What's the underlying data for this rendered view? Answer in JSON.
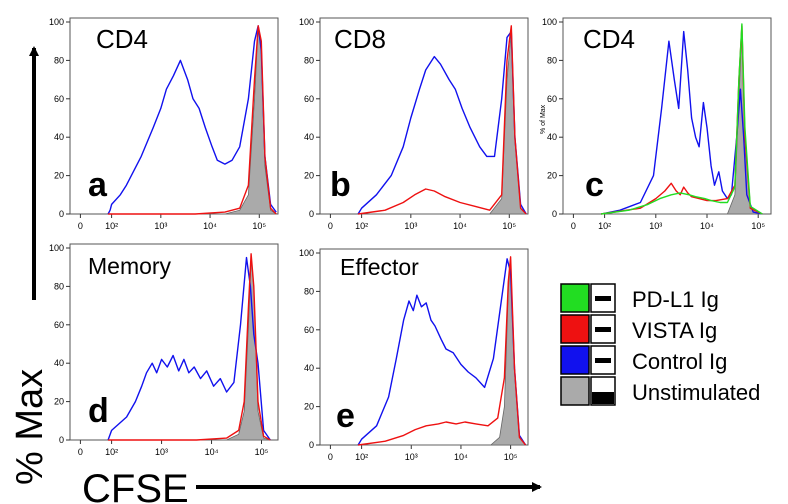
{
  "figure": {
    "y_axis_label": "% Max",
    "x_axis_label": "CFSE"
  },
  "legend": [
    {
      "label": "PD-L1 Ig",
      "color": "#22dd22"
    },
    {
      "label": "VISTA Ig",
      "color": "#ee1111"
    },
    {
      "label": "Control Ig",
      "color": "#1111ee"
    },
    {
      "label": "Unstimulated",
      "color": "#aaaaaa"
    }
  ],
  "chart_data": [
    {
      "type": "area",
      "panel": "a",
      "title": "CD4",
      "ylabel": "",
      "x_ticks": [
        "0",
        "10²",
        "10³",
        "10⁴",
        "10⁵"
      ],
      "y_ticks": [
        0,
        20,
        40,
        60,
        80,
        100
      ],
      "ylim": [
        0,
        100
      ],
      "x_scale": "logicle",
      "series": [
        {
          "color": "#1111ee",
          "x": [
            60,
            80,
            100,
            150,
            200,
            400,
            700,
            1000,
            1300,
            1800,
            2500,
            3500,
            4500,
            6000,
            8000,
            11000,
            14000,
            20000,
            28000,
            40000,
            60000,
            80000,
            95000,
            110000,
            130000,
            170000,
            220000
          ],
          "y": [
            0,
            2,
            5,
            10,
            15,
            30,
            45,
            55,
            65,
            72,
            80,
            70,
            60,
            55,
            45,
            35,
            28,
            26,
            28,
            35,
            60,
            90,
            98,
            85,
            30,
            5,
            1
          ]
        },
        {
          "color": "#ee1111",
          "x": [
            60,
            5000,
            20000,
            40000,
            60000,
            80000,
            95000,
            110000,
            130000,
            170000,
            220000
          ],
          "y": [
            0,
            0,
            1,
            3,
            15,
            70,
            98,
            90,
            30,
            3,
            0
          ]
        },
        {
          "color": "#aaaaaa",
          "fill": true,
          "x": [
            60,
            20000,
            40000,
            60000,
            80000,
            95000,
            110000,
            130000,
            170000,
            220000
          ],
          "y": [
            0,
            0,
            2,
            10,
            60,
            98,
            85,
            25,
            2,
            0
          ]
        }
      ]
    },
    {
      "type": "area",
      "panel": "b",
      "title": "CD8",
      "ylabel": "",
      "x_ticks": [
        "0",
        "10²",
        "10³",
        "10⁴",
        "10⁵"
      ],
      "y_ticks": [
        0,
        20,
        40,
        60,
        80,
        100
      ],
      "ylim": [
        0,
        100
      ],
      "x_scale": "logicle",
      "series": [
        {
          "color": "#1111ee",
          "x": [
            60,
            100,
            200,
            400,
            700,
            1000,
            1500,
            2000,
            3000,
            4000,
            6000,
            8000,
            11000,
            16000,
            25000,
            35000,
            50000,
            70000,
            90000,
            110000,
            130000,
            170000,
            220000
          ],
          "y": [
            0,
            3,
            10,
            20,
            35,
            50,
            65,
            75,
            82,
            78,
            70,
            65,
            55,
            45,
            35,
            30,
            30,
            60,
            92,
            95,
            40,
            5,
            0
          ]
        },
        {
          "color": "#ee1111",
          "x": [
            60,
            300,
            700,
            1200,
            2000,
            3000,
            5000,
            10000,
            20000,
            40000,
            70000,
            90000,
            110000,
            130000,
            170000,
            220000
          ],
          "y": [
            0,
            2,
            6,
            10,
            13,
            12,
            9,
            6,
            4,
            2,
            10,
            80,
            98,
            40,
            3,
            0
          ]
        },
        {
          "color": "#aaaaaa",
          "fill": true,
          "x": [
            60,
            40000,
            70000,
            90000,
            110000,
            130000,
            170000,
            220000
          ],
          "y": [
            0,
            0,
            8,
            70,
            95,
            40,
            3,
            0
          ]
        }
      ]
    },
    {
      "type": "area",
      "panel": "c",
      "title": "CD4",
      "ylabel": "% of Max",
      "x_ticks": [
        "0",
        "10²",
        "10³",
        "10⁴",
        "10⁵"
      ],
      "y_ticks": [
        0,
        20,
        40,
        60,
        80,
        100
      ],
      "ylim": [
        0,
        100
      ],
      "x_scale": "logicle",
      "series": [
        {
          "color": "#1111ee",
          "x": [
            60,
            200,
            500,
            900,
            1300,
            1800,
            2300,
            2800,
            3500,
            4200,
            5000,
            6000,
            7000,
            8500,
            10000,
            12000,
            14000,
            17000,
            20000,
            25000,
            30000,
            38000,
            45000,
            52000,
            60000,
            80000,
            120000
          ],
          "y": [
            0,
            2,
            6,
            20,
            55,
            90,
            70,
            55,
            95,
            75,
            50,
            40,
            35,
            58,
            45,
            25,
            15,
            22,
            12,
            8,
            10,
            40,
            65,
            40,
            10,
            1,
            0
          ]
        },
        {
          "color": "#ee1111",
          "x": [
            60,
            500,
            1000,
            1500,
            2000,
            2500,
            3000,
            3500,
            4200,
            5000,
            7000,
            10000,
            15000,
            25000,
            35000,
            42000,
            48000,
            55000,
            70000,
            120000
          ],
          "y": [
            0,
            3,
            8,
            12,
            16,
            12,
            10,
            14,
            11,
            9,
            8,
            7,
            7,
            8,
            15,
            70,
            98,
            40,
            3,
            0
          ]
        },
        {
          "color": "#22dd22",
          "x": [
            60,
            300,
            700,
            1200,
            2000,
            3000,
            4500,
            6000,
            9000,
            12000,
            18000,
            25000,
            35000,
            42000,
            48000,
            55000,
            70000,
            120000
          ],
          "y": [
            0,
            2,
            5,
            8,
            10,
            11,
            10,
            9,
            8,
            7,
            6,
            6,
            14,
            70,
            99,
            45,
            4,
            0
          ]
        },
        {
          "color": "#aaaaaa",
          "fill": true,
          "x": [
            60,
            25000,
            35000,
            42000,
            48000,
            55000,
            70000,
            120000
          ],
          "y": [
            0,
            0,
            10,
            60,
            95,
            40,
            3,
            0
          ]
        }
      ]
    },
    {
      "type": "area",
      "panel": "d",
      "title": "Memory",
      "ylabel": "",
      "x_ticks": [
        "0",
        "10²",
        "10³",
        "10⁴",
        "10⁵"
      ],
      "y_ticks": [
        0,
        20,
        40,
        60,
        80,
        100
      ],
      "ylim": [
        0,
        100
      ],
      "x_scale": "logicle",
      "series": [
        {
          "color": "#1111ee",
          "x": [
            60,
            100,
            200,
            300,
            400,
            500,
            650,
            800,
            1000,
            1300,
            1700,
            2200,
            2800,
            3500,
            4500,
            6000,
            8000,
            11000,
            15000,
            20000,
            28000,
            38000,
            50000,
            60000,
            70000,
            85000,
            110000,
            150000
          ],
          "y": [
            0,
            5,
            12,
            20,
            28,
            35,
            40,
            35,
            42,
            38,
            44,
            36,
            42,
            35,
            38,
            32,
            36,
            28,
            32,
            25,
            30,
            60,
            95,
            80,
            55,
            40,
            5,
            0
          ]
        },
        {
          "color": "#ee1111",
          "x": [
            60,
            5000,
            20000,
            35000,
            45000,
            55000,
            62000,
            70000,
            85000,
            110000,
            150000
          ],
          "y": [
            0,
            0,
            1,
            5,
            20,
            70,
            97,
            80,
            20,
            2,
            0
          ]
        },
        {
          "color": "#aaaaaa",
          "fill": true,
          "x": [
            60,
            20000,
            35000,
            45000,
            55000,
            62000,
            70000,
            85000,
            110000,
            150000
          ],
          "y": [
            0,
            0,
            3,
            15,
            60,
            94,
            80,
            15,
            1,
            0
          ]
        }
      ]
    },
    {
      "type": "area",
      "panel": "e",
      "title": "Effector",
      "ylabel": "",
      "x_ticks": [
        "0",
        "10²",
        "10³",
        "10⁴",
        "10⁵"
      ],
      "y_ticks": [
        0,
        20,
        40,
        60,
        80,
        100
      ],
      "ylim": [
        0,
        100
      ],
      "x_scale": "logicle",
      "series": [
        {
          "color": "#1111ee",
          "x": [
            60,
            100,
            200,
            350,
            500,
            700,
            900,
            1100,
            1300,
            1600,
            2000,
            2500,
            3000,
            4000,
            5000,
            7000,
            10000,
            14000,
            20000,
            30000,
            45000,
            65000,
            85000,
            100000,
            120000,
            150000,
            200000
          ],
          "y": [
            0,
            3,
            10,
            25,
            45,
            65,
            75,
            70,
            78,
            72,
            74,
            65,
            62,
            55,
            50,
            48,
            42,
            38,
            35,
            30,
            45,
            75,
            97,
            90,
            40,
            5,
            0
          ]
        },
        {
          "color": "#ee1111",
          "x": [
            60,
            300,
            700,
            1200,
            2000,
            3500,
            5000,
            8000,
            12000,
            20000,
            35000,
            55000,
            75000,
            90000,
            100000,
            120000,
            150000,
            200000
          ],
          "y": [
            0,
            2,
            5,
            8,
            10,
            11,
            12,
            11,
            12,
            11,
            10,
            14,
            35,
            85,
            98,
            40,
            4,
            0
          ]
        },
        {
          "color": "#aaaaaa",
          "fill": true,
          "x": [
            60,
            40000,
            60000,
            75000,
            90000,
            100000,
            120000,
            150000,
            200000
          ],
          "y": [
            0,
            0,
            4,
            20,
            80,
            97,
            40,
            4,
            0
          ]
        }
      ]
    }
  ]
}
